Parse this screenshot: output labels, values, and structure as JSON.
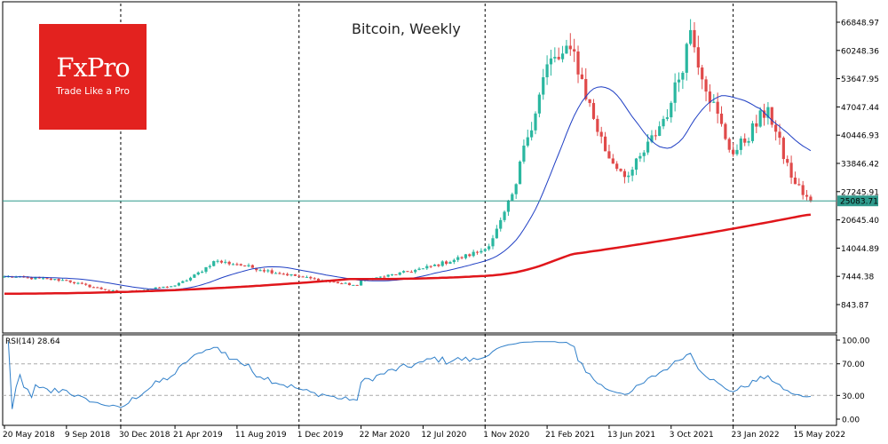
{
  "title": "Bitcoin, Weekly",
  "brand": {
    "name": "FxPro",
    "tagline": "Trade Like a Pro",
    "color": "#e3221f"
  },
  "indicator_label": "RSI(14) 28.64",
  "colors": {
    "up": "#2ab7a0",
    "down": "#e04a4a",
    "ma_fast": "#1f3fc4",
    "ma_slow": "#e0161b",
    "current": "#2f9a8c",
    "rsi": "#2f7fc9"
  },
  "chart_data": [
    {
      "type": "candlestick",
      "title": "Bitcoin, Weekly",
      "y_scale": "log",
      "y_ticks": [
        "66848.97",
        "60248.36",
        "53647.95",
        "47047.44",
        "40446.93",
        "33846.42",
        "27245.91",
        "20645.40",
        "14044.89",
        "7444.38",
        "843.87"
      ],
      "current_price": "25083.71",
      "x_tick_labels": [
        "20 May 2018",
        "9 Sep 2018",
        "30 Dec 2018",
        "21 Apr 2019",
        "11 Aug 2019",
        "1 Dec 2019",
        "22 Mar 2020",
        "12 Jul 2020",
        "1 Nov 2020",
        "21 Feb 2021",
        "13 Jun 2021",
        "3 Oct 2021",
        "23 Jan 2022",
        "15 May 2022"
      ],
      "vertical_markers": [
        "30 Dec 2018",
        "1 Dec 2019",
        "1 Nov 2020",
        "23 Jan 2022"
      ],
      "weekly_close_approx": [
        {
          "date": "20 May 2018",
          "value": 7400
        },
        {
          "date": "9 Sep 2018",
          "value": 6500
        },
        {
          "date": "30 Dec 2018",
          "value": 3700
        },
        {
          "date": "21 Apr 2019",
          "value": 5300
        },
        {
          "date": "30 Jun 2019",
          "value": 11000
        },
        {
          "date": "11 Aug 2019",
          "value": 10300
        },
        {
          "date": "1 Dec 2019",
          "value": 7400
        },
        {
          "date": "15 Mar 2020",
          "value": 5300
        },
        {
          "date": "22 Mar 2020",
          "value": 6500
        },
        {
          "date": "12 Jul 2020",
          "value": 9300
        },
        {
          "date": "1 Nov 2020",
          "value": 13800
        },
        {
          "date": "27 Dec 2020",
          "value": 29000
        },
        {
          "date": "10 Jan 2021",
          "value": 38000
        },
        {
          "date": "21 Feb 2021",
          "value": 57000
        },
        {
          "date": "11 Apr 2021",
          "value": 60000
        },
        {
          "date": "13 Jun 2021",
          "value": 35000
        },
        {
          "date": "18 Jul 2021",
          "value": 31000
        },
        {
          "date": "3 Oct 2021",
          "value": 48000
        },
        {
          "date": "7 Nov 2021",
          "value": 65000
        },
        {
          "date": "23 Jan 2022",
          "value": 36000
        },
        {
          "date": "27 Mar 2022",
          "value": 47000
        },
        {
          "date": "15 May 2022",
          "value": 29000
        },
        {
          "date": "12 Jun 2022",
          "value": 25083
        }
      ],
      "series": [
        {
          "name": "",
          "style": "line",
          "color": "#1f3fc4"
        },
        {
          "name": "",
          "style": "line",
          "color": "#e0161b"
        }
      ]
    },
    {
      "type": "line",
      "title": "RSI(14) 28.64",
      "ylim": [
        0,
        100
      ],
      "y_ticks": [
        "100.00",
        "70.00",
        "30.00",
        "0.00"
      ],
      "guides": [
        70,
        30
      ],
      "last_value": 28.64
    }
  ]
}
